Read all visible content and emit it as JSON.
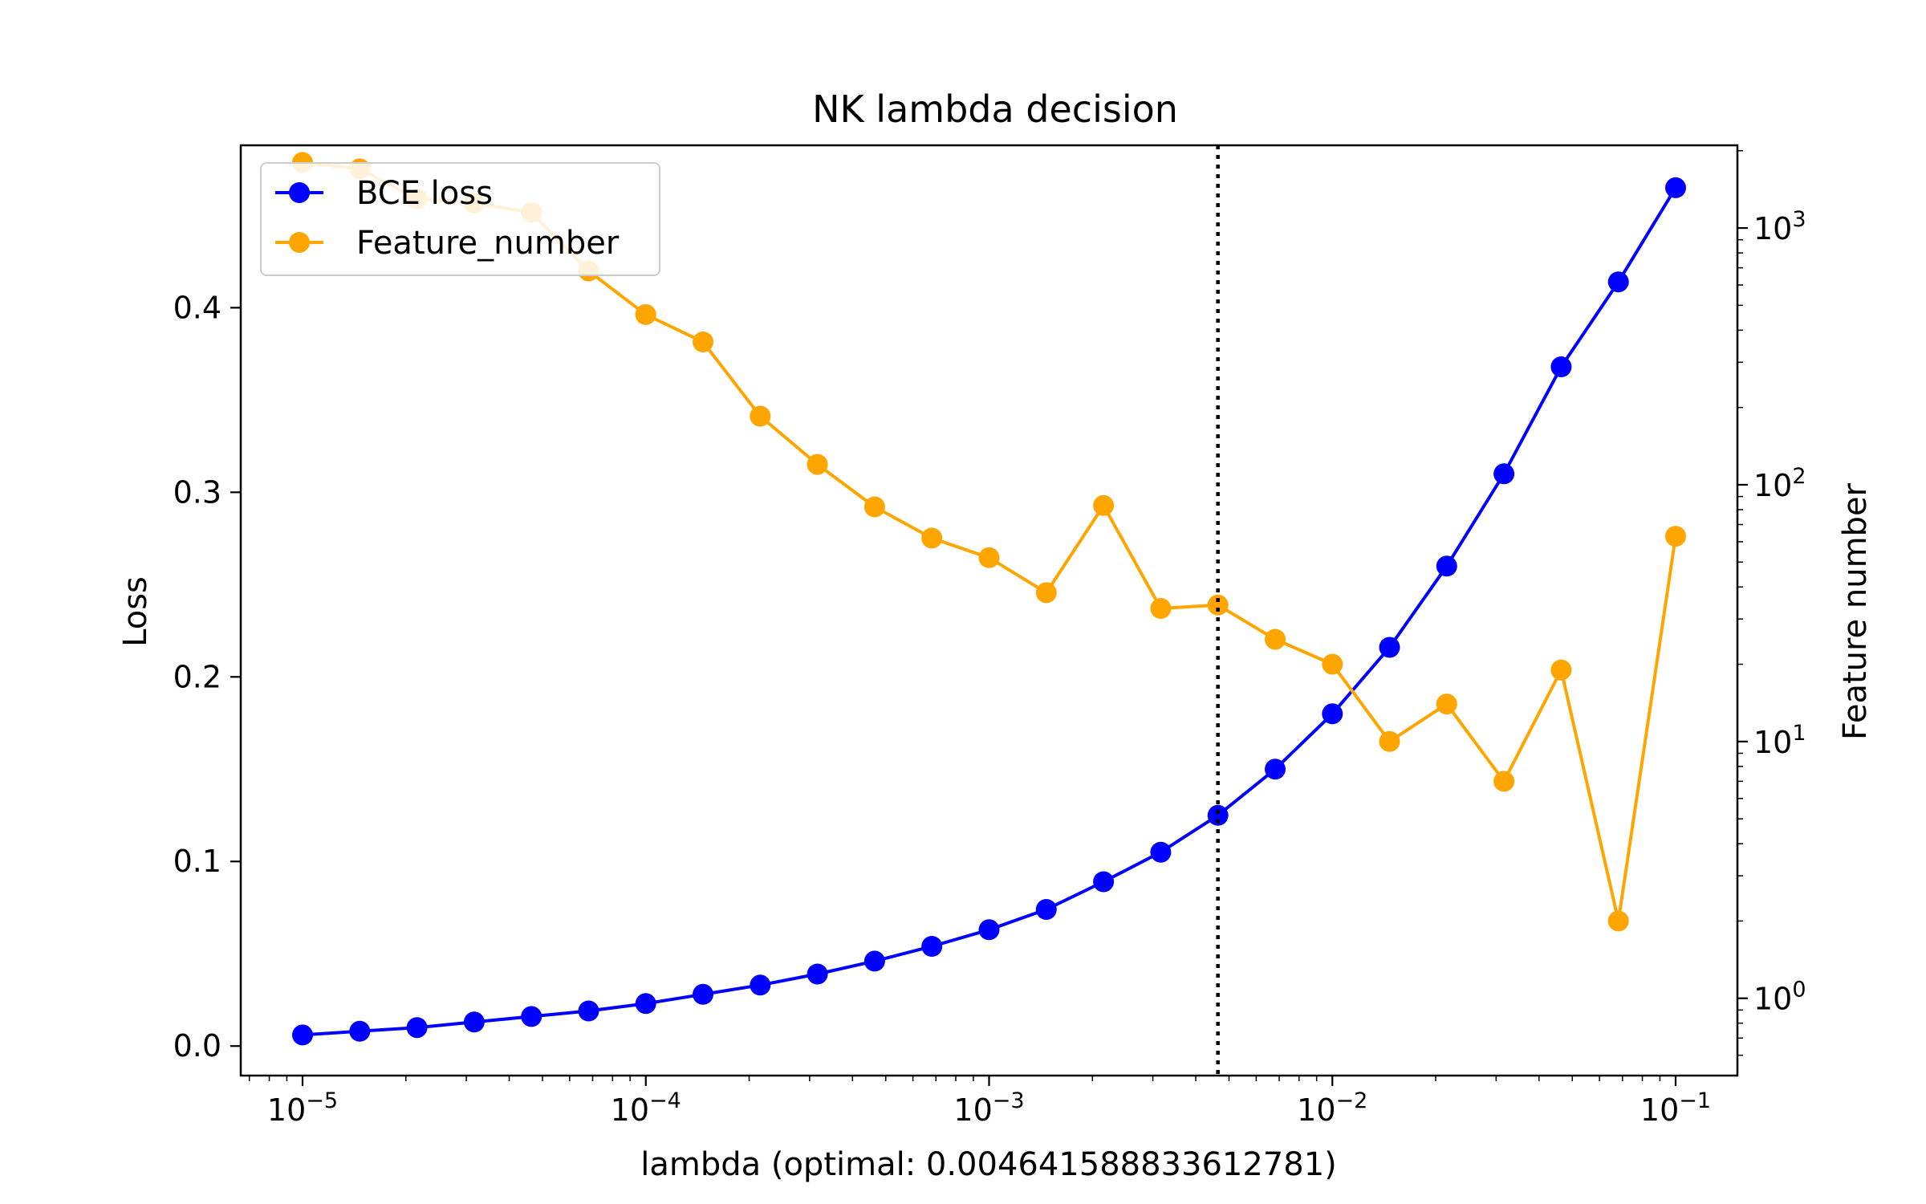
{
  "chart_data": {
    "type": "line",
    "title": "NK lambda decision",
    "xlabel": "lambda (optimal: 0.004641588833612781)",
    "ylabel_left": "Loss",
    "ylabel_right": "Feature number",
    "x_scale": "log",
    "x_ticks": [
      {
        "value": 1e-05,
        "base": "10",
        "exp": "−5"
      },
      {
        "value": 0.0001,
        "base": "10",
        "exp": "−4"
      },
      {
        "value": 0.001,
        "base": "10",
        "exp": "−3"
      },
      {
        "value": 0.01,
        "base": "10",
        "exp": "−2"
      },
      {
        "value": 0.1,
        "base": "10",
        "exp": "−1"
      }
    ],
    "y_left_ticks": [
      "0.0",
      "0.1",
      "0.2",
      "0.3",
      "0.4"
    ],
    "y_left_ylim": [
      -0.016,
      0.488
    ],
    "y_right_scale": "log",
    "y_right_ticks": [
      {
        "value": 1,
        "base": "10",
        "exp": "0"
      },
      {
        "value": 10,
        "base": "10",
        "exp": "1"
      },
      {
        "value": 100,
        "base": "10",
        "exp": "2"
      },
      {
        "value": 1000,
        "base": "10",
        "exp": "3"
      }
    ],
    "y_right_ylim": [
      0.5,
      2100
    ],
    "optimal_lambda": 0.004641588833612781,
    "optimal_line_style": "dotted",
    "legend_position": "top-left",
    "grid": false,
    "x": [
      1e-05,
      1.4678e-05,
      2.1544e-05,
      3.1623e-05,
      4.6416e-05,
      6.8129e-05,
      0.0001,
      0.00014678,
      0.00021544,
      0.00031623,
      0.00046416,
      0.00068129,
      0.001,
      0.0014678,
      0.0021544,
      0.0031623,
      0.0046416,
      0.0068129,
      0.01,
      0.014678,
      0.021544,
      0.031623,
      0.046416,
      0.068129,
      0.1
    ],
    "series": [
      {
        "name": "BCE loss",
        "color": "#0000ff",
        "axis": "left",
        "values": [
          0.006,
          0.008,
          0.01,
          0.013,
          0.016,
          0.019,
          0.023,
          0.028,
          0.033,
          0.039,
          0.046,
          0.054,
          0.063,
          0.074,
          0.089,
          0.105,
          0.125,
          0.15,
          0.18,
          0.216,
          0.26,
          0.31,
          0.368,
          0.414,
          0.465
        ]
      },
      {
        "name": "Feature_number",
        "color": "#ffa500",
        "axis": "right",
        "values": [
          1800,
          1700,
          1300,
          1250,
          1150,
          680,
          460,
          360,
          185,
          120,
          82,
          62,
          52,
          38,
          83,
          33,
          34,
          25,
          20,
          10,
          14,
          7,
          19,
          2,
          63
        ]
      }
    ]
  }
}
